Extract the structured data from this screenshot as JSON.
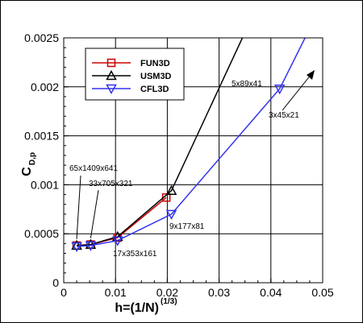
{
  "chart_data": {
    "type": "line",
    "xlabel": "h=(1/N)",
    "xlabel_sup": "(1/3)",
    "ylabel": "C",
    "ylabel_sub": "D,p",
    "xlim": [
      0,
      0.05
    ],
    "ylim": [
      0,
      0.0025
    ],
    "x_ticks": [
      "0",
      "0.01",
      "0.02",
      "0.03",
      "0.04",
      "0.05"
    ],
    "y_ticks": [
      "0",
      "0.0005",
      "0.001",
      "0.0015",
      "0.002",
      "0.0025"
    ],
    "grid": true,
    "legend_position": "top-left",
    "series": [
      {
        "name": "FUN3D",
        "color": "#cc0000",
        "marker": "square",
        "x": [
          0.0025,
          0.0052,
          0.0104,
          0.0198
        ],
        "y": [
          0.00038,
          0.00039,
          0.00046,
          0.00087
        ]
      },
      {
        "name": "USM3D",
        "color": "#000000",
        "marker": "triangle-up",
        "x": [
          0.0025,
          0.0052,
          0.0104,
          0.0208,
          0.0345
        ],
        "y": [
          0.00038,
          0.00039,
          0.00047,
          0.00094,
          0.0025
        ]
      },
      {
        "name": "CFL3D",
        "color": "#3333ee",
        "marker": "triangle-down",
        "x": [
          0.0025,
          0.0052,
          0.0104,
          0.0208,
          0.0417,
          0.0466
        ],
        "y": [
          0.00037,
          0.00038,
          0.00043,
          0.0007,
          0.00198,
          0.0025
        ]
      }
    ],
    "annotations": [
      {
        "text": "65x1409x641",
        "x": 0.0025,
        "y": 0.00038
      },
      {
        "text": "33x705x321",
        "x": 0.0052,
        "y": 0.00039
      },
      {
        "text": "17x353x161",
        "x": 0.0104,
        "y": 0.00043
      },
      {
        "text": "9x177x81",
        "x": 0.0208,
        "y": 0.0007
      },
      {
        "text": "5x89x41",
        "x": 0.0417,
        "y": 0.00198
      },
      {
        "text": "3x45x21",
        "x": 0.0417,
        "y": 0.00198
      }
    ]
  }
}
